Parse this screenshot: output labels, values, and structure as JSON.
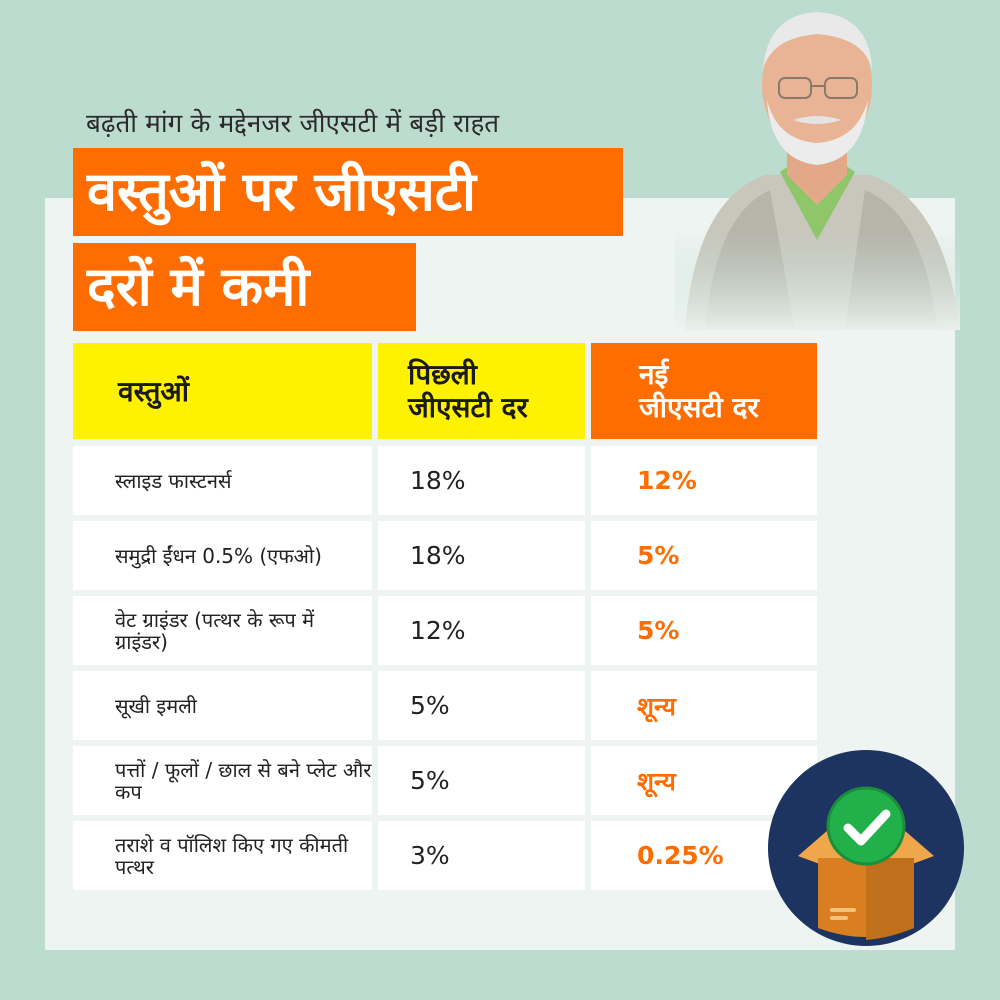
{
  "header": {
    "subtitle": "बढ़ती मांग के मद्देनजर जीएसटी में बड़ी राहत",
    "title_line1": "वस्तुओं पर जीएसटी",
    "title_line2": "दरों में कमी"
  },
  "table": {
    "col_item": "वस्तुओं",
    "col_prev_line1": "पिछली",
    "col_prev_line2": "जीएसटी दर",
    "col_new_line1": "नई",
    "col_new_line2": "जीएसटी दर",
    "rows": [
      {
        "item": "स्लाइड फास्टनर्स",
        "prev": "18%",
        "new": "12%"
      },
      {
        "item": "समुद्री ईंधन 0.5% (एफओ)",
        "prev": "18%",
        "new": "5%"
      },
      {
        "item": "वेट ग्राइंडर (पत्थर के रूप में ग्राइंडर)",
        "prev": "12%",
        "new": "5%"
      },
      {
        "item": "सूखी इमली",
        "prev": "5%",
        "new": "शून्य"
      },
      {
        "item": "पत्तों / फूलों / छाल से बने प्लेट और कप",
        "prev": "5%",
        "new": "शून्य"
      },
      {
        "item": "तराशे व पॉलिश किए गए कीमती पत्थर",
        "prev": "3%",
        "new": "0.25%"
      }
    ]
  },
  "colors": {
    "background": "#bcdccf",
    "orange": "#ff6d00",
    "yellow": "#fff200",
    "badge_navy": "#1d3461",
    "badge_green": "#22b04b"
  },
  "icons": {
    "badge": "box-with-check-icon",
    "portrait": "person-portrait-icon"
  }
}
